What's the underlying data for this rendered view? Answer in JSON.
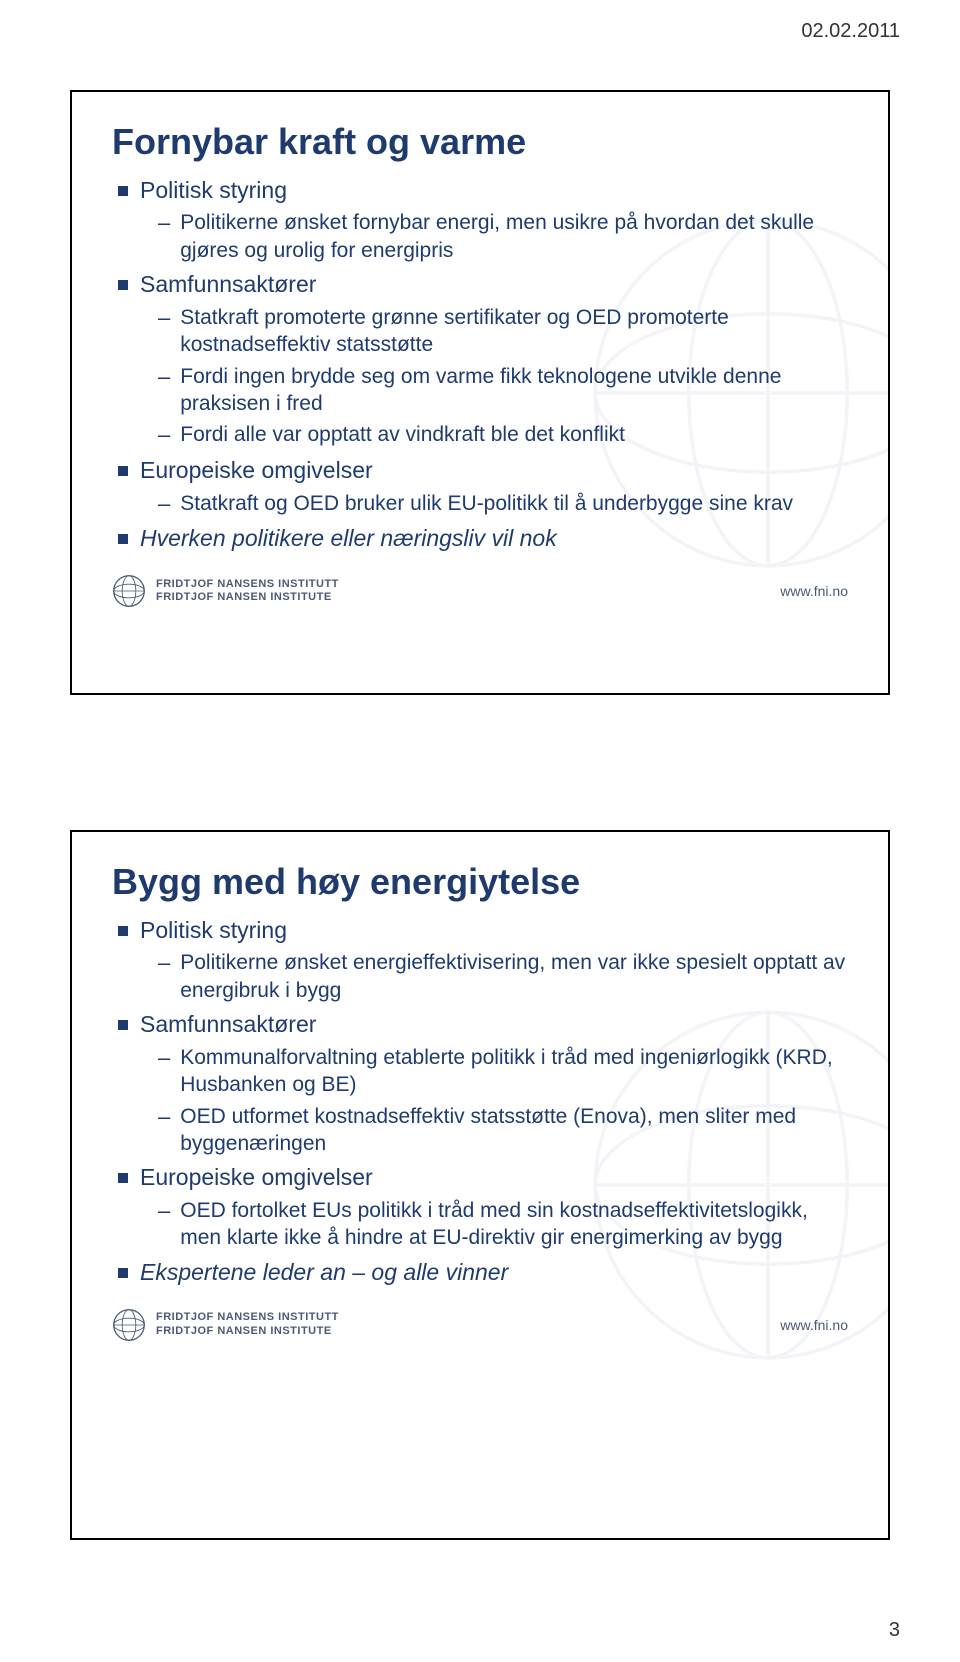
{
  "meta": {
    "date": "02.02.2011",
    "page_number": "3"
  },
  "slide1": {
    "title": "Fornybar kraft og varme",
    "bullets": [
      {
        "text": "Politisk styring",
        "italic": false,
        "sub": [
          "Politikerne ønsket fornybar energi, men usikre på hvordan det skulle gjøres og urolig for energipris"
        ]
      },
      {
        "text": "Samfunnsaktører",
        "italic": false,
        "sub": [
          "Statkraft promoterte grønne sertifikater og OED promoterte kostnadseffektiv statsstøtte",
          "Fordi ingen brydde seg om varme fikk teknologene utvikle denne praksisen i fred",
          "Fordi alle var opptatt av vindkraft ble det konflikt"
        ]
      },
      {
        "text": "Europeiske omgivelser",
        "italic": false,
        "sub": [
          "Statkraft og OED bruker ulik EU-politikk til å underbygge sine krav"
        ]
      },
      {
        "text": "Hverken politikere eller næringsliv vil nok",
        "italic": true,
        "sub": []
      }
    ]
  },
  "slide2": {
    "title": "Bygg med høy energiytelse",
    "bullets": [
      {
        "text": "Politisk styring",
        "italic": false,
        "sub": [
          "Politikerne ønsket energieffektivisering, men var ikke spesielt opptatt av energibruk i bygg"
        ]
      },
      {
        "text": "Samfunnsaktører",
        "italic": false,
        "sub": [
          "Kommunalforvaltning etablerte politikk i tråd med ingeniørlogikk (KRD, Husbanken og BE)",
          "OED utformet kostnadseffektiv statsstøtte (Enova), men sliter med byggenæringen"
        ]
      },
      {
        "text": "Europeiske omgivelser",
        "italic": false,
        "sub": [
          "OED fortolket EUs politikk i tråd med sin kostnadseffektivitetslogikk, men klarte ikke å hindre at EU-direktiv gir energimerking av bygg"
        ]
      },
      {
        "text": "Ekspertene leder an – og alle vinner",
        "italic": true,
        "sub": []
      }
    ]
  },
  "footer": {
    "inst1": "FRIDTJOF NANSENS INSTITUTT",
    "inst2": "FRIDTJOF NANSEN INSTITUTE",
    "url": "www.fni.no"
  },
  "colors": {
    "text": "#1f3b6e",
    "border": "#000000",
    "footer_text": "#4a5a75",
    "background": "#ffffff"
  }
}
